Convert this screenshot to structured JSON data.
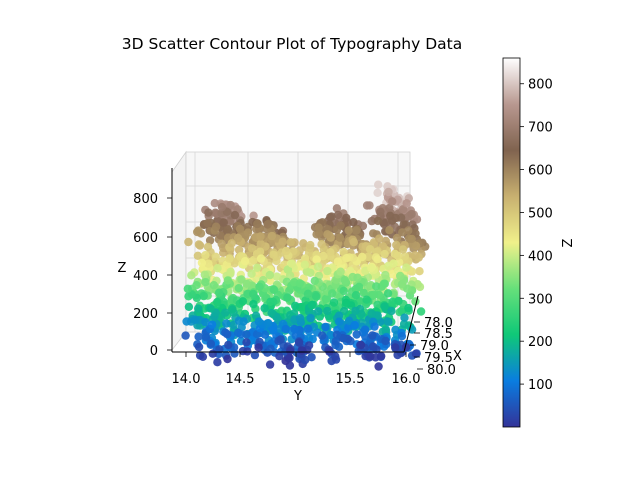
{
  "chart_data": {
    "type": "scatter",
    "title": "3D Scatter Contour Plot of Typography Data",
    "xlabel": "X",
    "ylabel": "Y",
    "zlabel": "Z",
    "colorbar_label": "Z",
    "colormap": "terrain",
    "colormap_stops": [
      "#333399",
      "#0a7de0",
      "#0fc878",
      "#66e07a",
      "#f0f08a",
      "#c8b070",
      "#80634f",
      "#b89890",
      "#ffffff"
    ],
    "xlim": [
      77.8,
      80.2
    ],
    "ylim": [
      13.85,
      16.05
    ],
    "zlim": [
      0,
      900
    ],
    "x_ticks": [
      "78.0",
      "78.5",
      "79.0",
      "79.5",
      "80.0"
    ],
    "y_ticks": [
      "14.0",
      "14.5",
      "15.0",
      "15.5",
      "16.0"
    ],
    "z_ticks": [
      "0",
      "200",
      "400",
      "600",
      "800"
    ],
    "colorbar_range": [
      0,
      860
    ],
    "colorbar_ticks": [
      "100",
      "200",
      "300",
      "400",
      "500",
      "600",
      "700",
      "800"
    ],
    "series_summary": {
      "y_range": [
        13.9,
        16.0
      ],
      "z_range": [
        0,
        860
      ],
      "density_peaks_y": [
        14.2,
        14.6,
        15.3,
        15.8
      ],
      "peak_heights": [
        760,
        680,
        720,
        820
      ]
    }
  }
}
